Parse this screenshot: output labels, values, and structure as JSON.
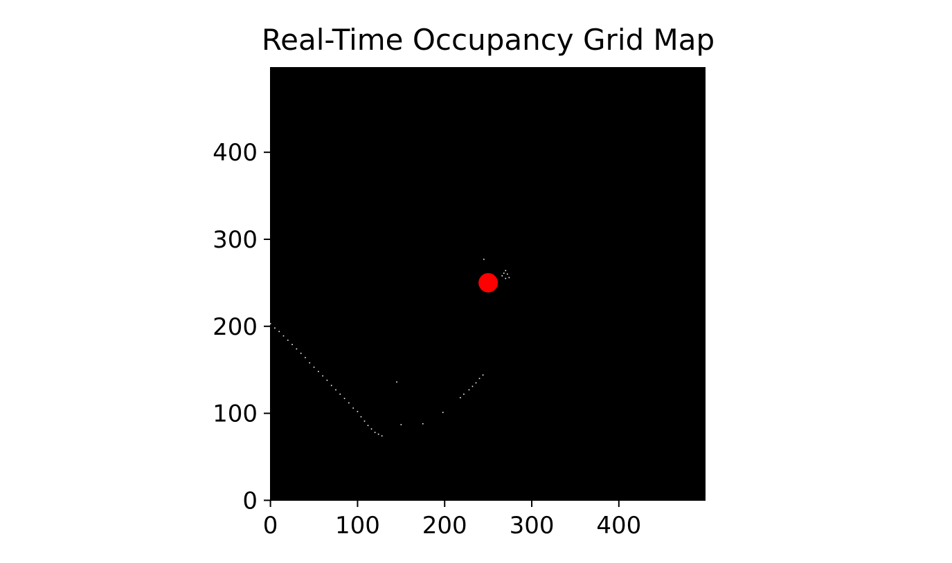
{
  "chart_data": {
    "type": "heatmap",
    "title": "Real-Time Occupancy Grid Map",
    "xlabel": "",
    "ylabel": "",
    "xlim": [
      0,
      499
    ],
    "ylim": [
      0,
      499
    ],
    "x_ticks": [
      0,
      100,
      200,
      300,
      400
    ],
    "y_ticks": [
      0,
      100,
      200,
      300,
      400
    ],
    "x_tick_labels": [
      "0",
      "100",
      "200",
      "300",
      "400"
    ],
    "y_tick_labels": [
      "0",
      "100",
      "200",
      "300",
      "400"
    ],
    "grid": false,
    "colormap": {
      "free": "#000000",
      "occupied": "#ffffff"
    },
    "robot_position": {
      "x": 250,
      "y": 250,
      "color": "#ff0000"
    },
    "occupied_cells": [
      [
        0,
        203
      ],
      [
        5,
        198
      ],
      [
        10,
        194
      ],
      [
        15,
        189
      ],
      [
        20,
        184
      ],
      [
        25,
        179
      ],
      [
        30,
        174
      ],
      [
        35,
        169
      ],
      [
        40,
        164
      ],
      [
        45,
        158
      ],
      [
        50,
        153
      ],
      [
        55,
        148
      ],
      [
        60,
        143
      ],
      [
        65,
        138
      ],
      [
        70,
        132
      ],
      [
        75,
        127
      ],
      [
        80,
        122
      ],
      [
        85,
        117
      ],
      [
        90,
        112
      ],
      [
        95,
        106
      ],
      [
        100,
        102
      ],
      [
        104,
        96
      ],
      [
        108,
        91
      ],
      [
        112,
        86
      ],
      [
        116,
        82
      ],
      [
        120,
        78
      ],
      [
        124,
        76
      ],
      [
        128,
        74
      ],
      [
        145,
        136
      ],
      [
        150,
        87
      ],
      [
        175,
        88
      ],
      [
        198,
        101
      ],
      [
        218,
        118
      ],
      [
        222,
        122
      ],
      [
        228,
        127
      ],
      [
        232,
        131
      ],
      [
        236,
        135
      ],
      [
        240,
        140
      ],
      [
        244,
        144
      ],
      [
        245,
        277
      ],
      [
        266,
        258
      ],
      [
        268,
        261
      ],
      [
        270,
        264
      ],
      [
        272,
        260
      ],
      [
        274,
        256
      ],
      [
        270,
        255
      ]
    ]
  }
}
